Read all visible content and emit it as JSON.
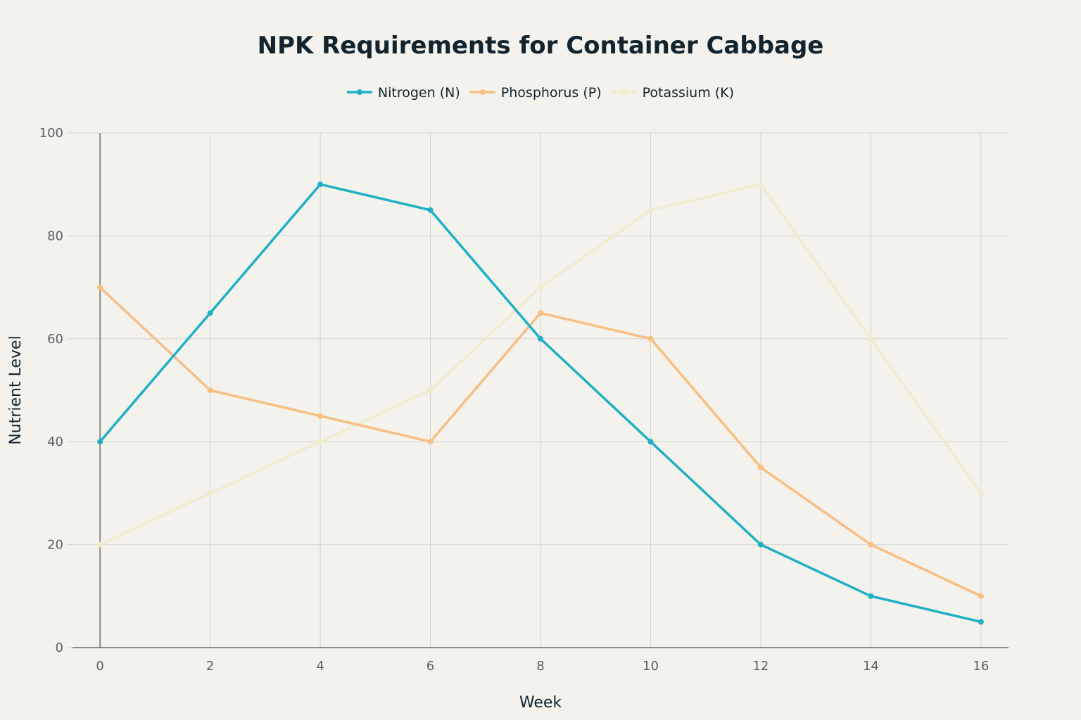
{
  "chart_data": {
    "type": "line",
    "title": "NPK Requirements for Container Cabbage",
    "xlabel": "Week",
    "ylabel": "Nutrient Level",
    "x": [
      0,
      2,
      4,
      6,
      8,
      10,
      12,
      14,
      16
    ],
    "xlim": [
      -0.5,
      16.5
    ],
    "ylim": [
      0,
      100
    ],
    "xticks": [
      0,
      2,
      4,
      6,
      8,
      10,
      12,
      14,
      16
    ],
    "yticks": [
      0,
      20,
      40,
      60,
      80,
      100
    ],
    "grid": true,
    "legend_position": "top-center",
    "series": [
      {
        "name": "Nitrogen (N)",
        "color": "#1fb0c4",
        "values": [
          40,
          65,
          90,
          85,
          60,
          40,
          20,
          10,
          5
        ]
      },
      {
        "name": "Phosphorus (P)",
        "color": "#f8be84",
        "values": [
          70,
          50,
          45,
          40,
          65,
          60,
          35,
          20,
          10
        ]
      },
      {
        "name": "Potassium (K)",
        "color": "#f0ecd0",
        "values": [
          20,
          30,
          40,
          50,
          70,
          85,
          90,
          60,
          30
        ]
      }
    ]
  }
}
